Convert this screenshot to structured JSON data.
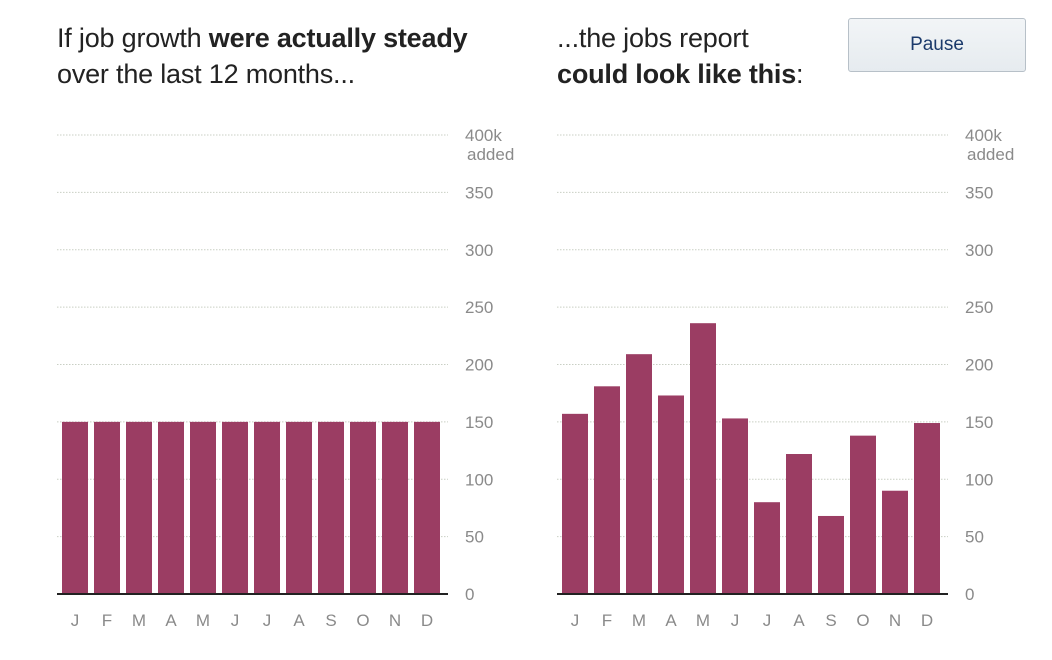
{
  "header": {
    "left": {
      "pre": "If job growth ",
      "bold": "were actually steady",
      "post": "over the last 12 months..."
    },
    "right": {
      "pre": "...the jobs report",
      "bold": "could look like this",
      "post": ":"
    }
  },
  "controls": {
    "pause_label": "Pause"
  },
  "colors": {
    "bar": "#9b3d63",
    "grid": "#c9cfc4",
    "axis": "#222222",
    "tick_text": "#8a8a8a"
  },
  "chart_data": [
    {
      "type": "bar",
      "title": "",
      "xlabel": "",
      "ylabel": "",
      "categories": [
        "J",
        "F",
        "M",
        "A",
        "M",
        "J",
        "J",
        "A",
        "S",
        "O",
        "N",
        "D"
      ],
      "values": [
        150,
        150,
        150,
        150,
        150,
        150,
        150,
        150,
        150,
        150,
        150,
        150
      ],
      "ylim": [
        0,
        400
      ],
      "yticks": [
        0,
        50,
        100,
        150,
        200,
        250,
        300,
        350,
        400
      ],
      "ytick_labels": [
        "0",
        "50",
        "100",
        "150",
        "200",
        "250",
        "300",
        "350",
        "400k"
      ],
      "ytick_top_unit": "added",
      "grid": true
    },
    {
      "type": "bar",
      "title": "",
      "xlabel": "",
      "ylabel": "",
      "categories": [
        "J",
        "F",
        "M",
        "A",
        "M",
        "J",
        "J",
        "A",
        "S",
        "O",
        "N",
        "D"
      ],
      "values": [
        157,
        181,
        209,
        173,
        236,
        153,
        80,
        122,
        68,
        138,
        90,
        149
      ],
      "ylim": [
        0,
        400
      ],
      "yticks": [
        0,
        50,
        100,
        150,
        200,
        250,
        300,
        350,
        400
      ],
      "ytick_labels": [
        "0",
        "50",
        "100",
        "150",
        "200",
        "250",
        "300",
        "350",
        "400k"
      ],
      "ytick_top_unit": "added",
      "grid": true
    }
  ]
}
